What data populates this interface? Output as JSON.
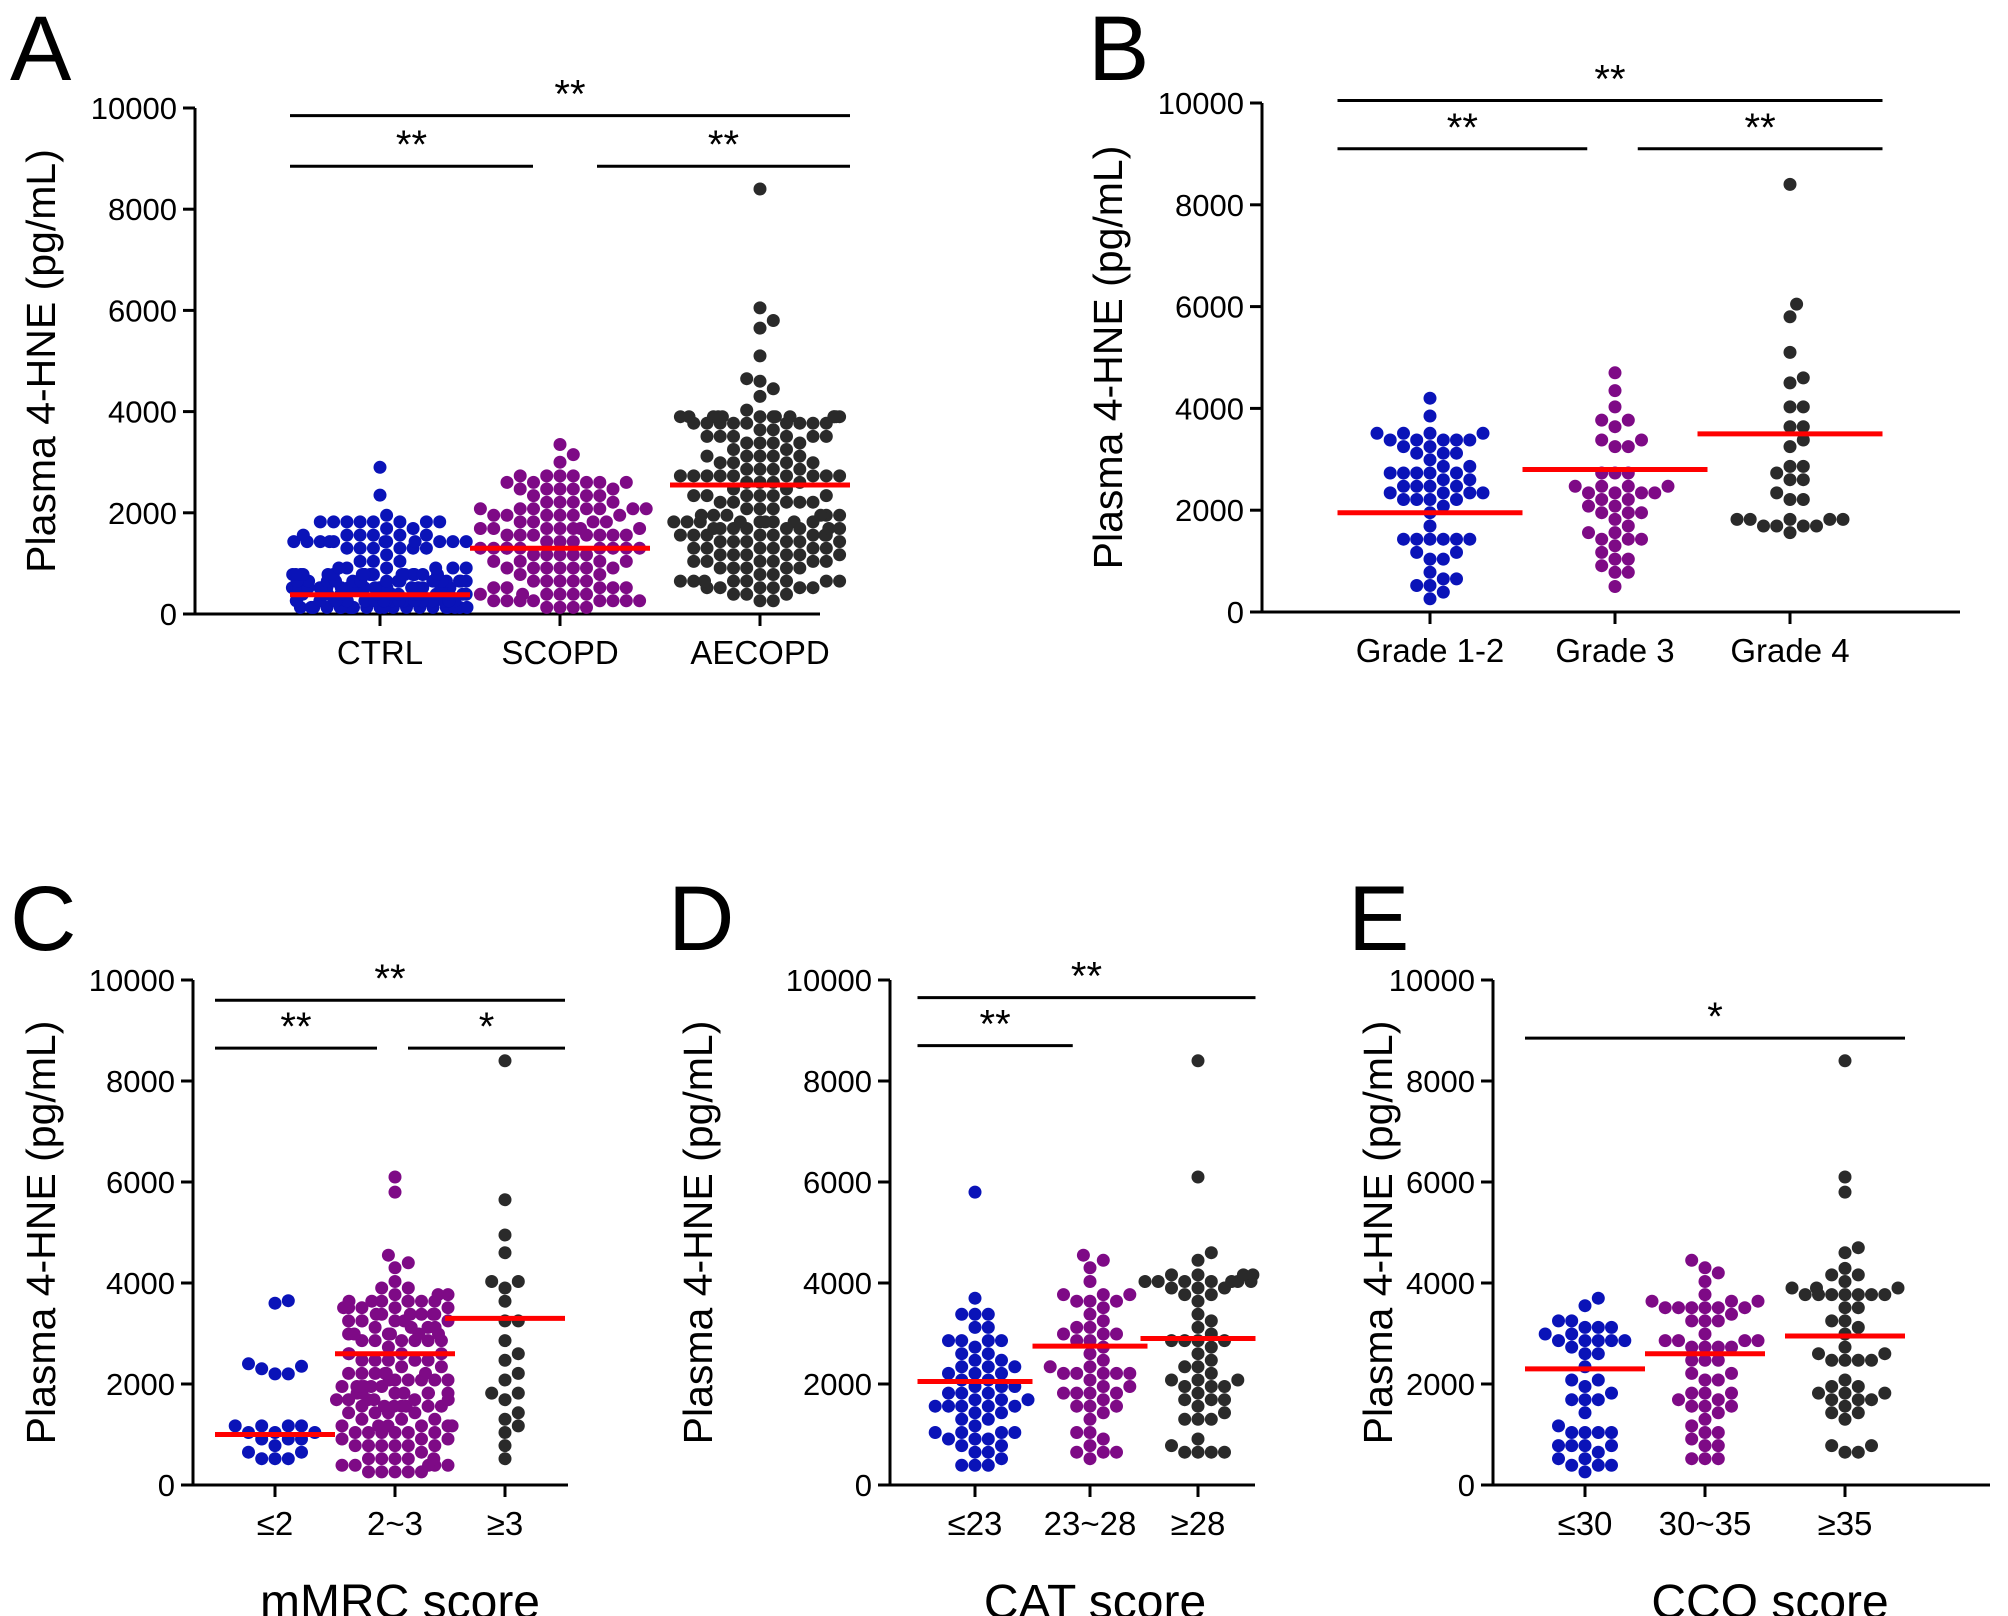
{
  "colors": {
    "blue": "#0a13b8",
    "purple": "#7e0a86",
    "black": "#2a2a2a",
    "median": "#ff0000"
  },
  "chart_data": [
    {
      "id": "A",
      "panel_label": "A",
      "type": "scatter",
      "title": "",
      "ylabel": "Plasma 4-HNE (pg/mL)",
      "xlabel": "",
      "ylim": [
        0,
        10000
      ],
      "yticks": [
        0,
        2000,
        4000,
        6000,
        8000,
        10000
      ],
      "categories": [
        "CTRL",
        "SCOPD",
        "AECOPD"
      ],
      "series": [
        {
          "name": "CTRL",
          "color": "blue",
          "median": 380,
          "n": 170,
          "min": 80,
          "max": 2000,
          "extra_points": [
            2350,
            2900
          ],
          "dense_below": 800
        },
        {
          "name": "SCOPD",
          "color": "purple",
          "median": 1300,
          "n": 110,
          "min": 80,
          "max": 2750,
          "extra_points": [
            3000,
            3150,
            3350
          ]
        },
        {
          "name": "AECOPD",
          "color": "black",
          "median": 2550,
          "n": 160,
          "min": 300,
          "max": 4050,
          "extra_points": [
            4300,
            4450,
            4600,
            4650,
            5100,
            5650,
            5800,
            6050,
            8400
          ]
        }
      ],
      "significance": [
        {
          "from": 0,
          "to": 1,
          "label": "**",
          "y": 8850
        },
        {
          "from": 1,
          "to": 2,
          "label": "**",
          "y": 8850
        },
        {
          "from": 0,
          "to": 2,
          "label": "**",
          "y": 9850
        }
      ]
    },
    {
      "id": "B",
      "panel_label": "B",
      "type": "scatter",
      "title": "",
      "ylabel": "Plasma 4-HNE (pg/mL)",
      "xlabel": "",
      "ylim": [
        0,
        10000
      ],
      "yticks": [
        0,
        2000,
        4000,
        6000,
        8000,
        10000
      ],
      "categories": [
        "Grade 1-2",
        "Grade 3",
        "Grade 4"
      ],
      "series": [
        {
          "name": "Grade 1-2",
          "color": "blue",
          "median": 1950,
          "n": 56,
          "min": 300,
          "max": 3600,
          "extra_points": [
            3850,
            4200
          ]
        },
        {
          "name": "Grade 3",
          "color": "purple",
          "median": 2800,
          "n": 40,
          "min": 800,
          "max": 4050,
          "extra_points": [
            500,
            4350,
            4700
          ]
        },
        {
          "name": "Grade 4",
          "color": "black",
          "median": 3500,
          "n": 24,
          "min": 1250,
          "max": 4100,
          "extra_points": [
            4500,
            4600,
            5100,
            5800,
            6050,
            8400
          ]
        }
      ],
      "significance": [
        {
          "from": 0,
          "to": 1,
          "label": "**",
          "y": 9100
        },
        {
          "from": 1,
          "to": 2,
          "label": "**",
          "y": 9100
        },
        {
          "from": 0,
          "to": 2,
          "label": "**",
          "y": 10050
        }
      ]
    },
    {
      "id": "C",
      "panel_label": "C",
      "type": "scatter",
      "title": "",
      "ylabel": "Plasma 4-HNE (pg/mL)",
      "xlabel": "mMRC score",
      "ylim": [
        0,
        10000
      ],
      "yticks": [
        0,
        2000,
        4000,
        6000,
        8000,
        10000
      ],
      "categories": [
        "≤2",
        "2~3",
        "≥3"
      ],
      "series": [
        {
          "name": "≤2",
          "color": "blue",
          "median": 1000,
          "n": 16,
          "min": 450,
          "max": 1300,
          "extra_points": [
            2200,
            2200,
            2300,
            2350,
            2400,
            3600,
            3650
          ]
        },
        {
          "name": "2~3",
          "color": "purple",
          "median": 2600,
          "n": 140,
          "min": 250,
          "max": 4000,
          "extra_points": [
            4300,
            4400,
            4550,
            5800,
            6100
          ]
        },
        {
          "name": "≥3",
          "color": "black",
          "median": 3300,
          "n": 20,
          "min": 500,
          "max": 4100,
          "extra_points": [
            4600,
            4950,
            5650,
            8400
          ]
        }
      ],
      "significance": [
        {
          "from": 0,
          "to": 1,
          "label": "**",
          "y": 8650
        },
        {
          "from": 1,
          "to": 2,
          "label": "*",
          "y": 8650
        },
        {
          "from": 0,
          "to": 2,
          "label": "**",
          "y": 9600
        }
      ]
    },
    {
      "id": "D",
      "panel_label": "D",
      "type": "scatter",
      "title": "",
      "ylabel": "Plasma 4-HNE (pg/mL)",
      "xlabel": "CAT score",
      "ylim": [
        0,
        10000
      ],
      "yticks": [
        0,
        2000,
        4000,
        6000,
        8000,
        10000
      ],
      "categories": [
        "≤23",
        "23~28",
        "≥28"
      ],
      "series": [
        {
          "name": "≤23",
          "color": "blue",
          "median": 2050,
          "n": 56,
          "min": 300,
          "max": 3500,
          "extra_points": [
            3700,
            5800
          ]
        },
        {
          "name": "23~28",
          "color": "purple",
          "median": 2750,
          "n": 48,
          "min": 500,
          "max": 4000,
          "extra_points": [
            4300,
            4450,
            4550
          ]
        },
        {
          "name": "≥28",
          "color": "black",
          "median": 2900,
          "n": 52,
          "min": 550,
          "max": 4250,
          "extra_points": [
            4450,
            4600,
            6100,
            8400
          ]
        }
      ],
      "significance": [
        {
          "from": 0,
          "to": 1,
          "label": "**",
          "y": 8700
        },
        {
          "from": 0,
          "to": 2,
          "label": "**",
          "y": 9650
        }
      ]
    },
    {
      "id": "E",
      "panel_label": "E",
      "type": "scatter",
      "title": "",
      "ylabel": "Plasma 4-HNE (pg/mL)",
      "xlabel": "CCQ score",
      "ylim": [
        0,
        10000
      ],
      "yticks": [
        0,
        2000,
        4000,
        6000,
        8000,
        10000
      ],
      "categories": [
        "≤30",
        "30~35",
        "≥35"
      ],
      "series": [
        {
          "name": "≤30",
          "color": "blue",
          "median": 2300,
          "n": 40,
          "min": 300,
          "max": 3350,
          "extra_points": [
            3550,
            3700
          ]
        },
        {
          "name": "30~35",
          "color": "purple",
          "median": 2600,
          "n": 50,
          "min": 450,
          "max": 4000,
          "extra_points": [
            4200,
            4300,
            4450
          ]
        },
        {
          "name": "≥35",
          "color": "black",
          "median": 2950,
          "n": 44,
          "min": 450,
          "max": 4400,
          "extra_points": [
            4600,
            4700,
            5800,
            6100,
            8400
          ]
        }
      ],
      "significance": [
        {
          "from": 0,
          "to": 2,
          "label": "*",
          "y": 8850
        }
      ]
    }
  ]
}
